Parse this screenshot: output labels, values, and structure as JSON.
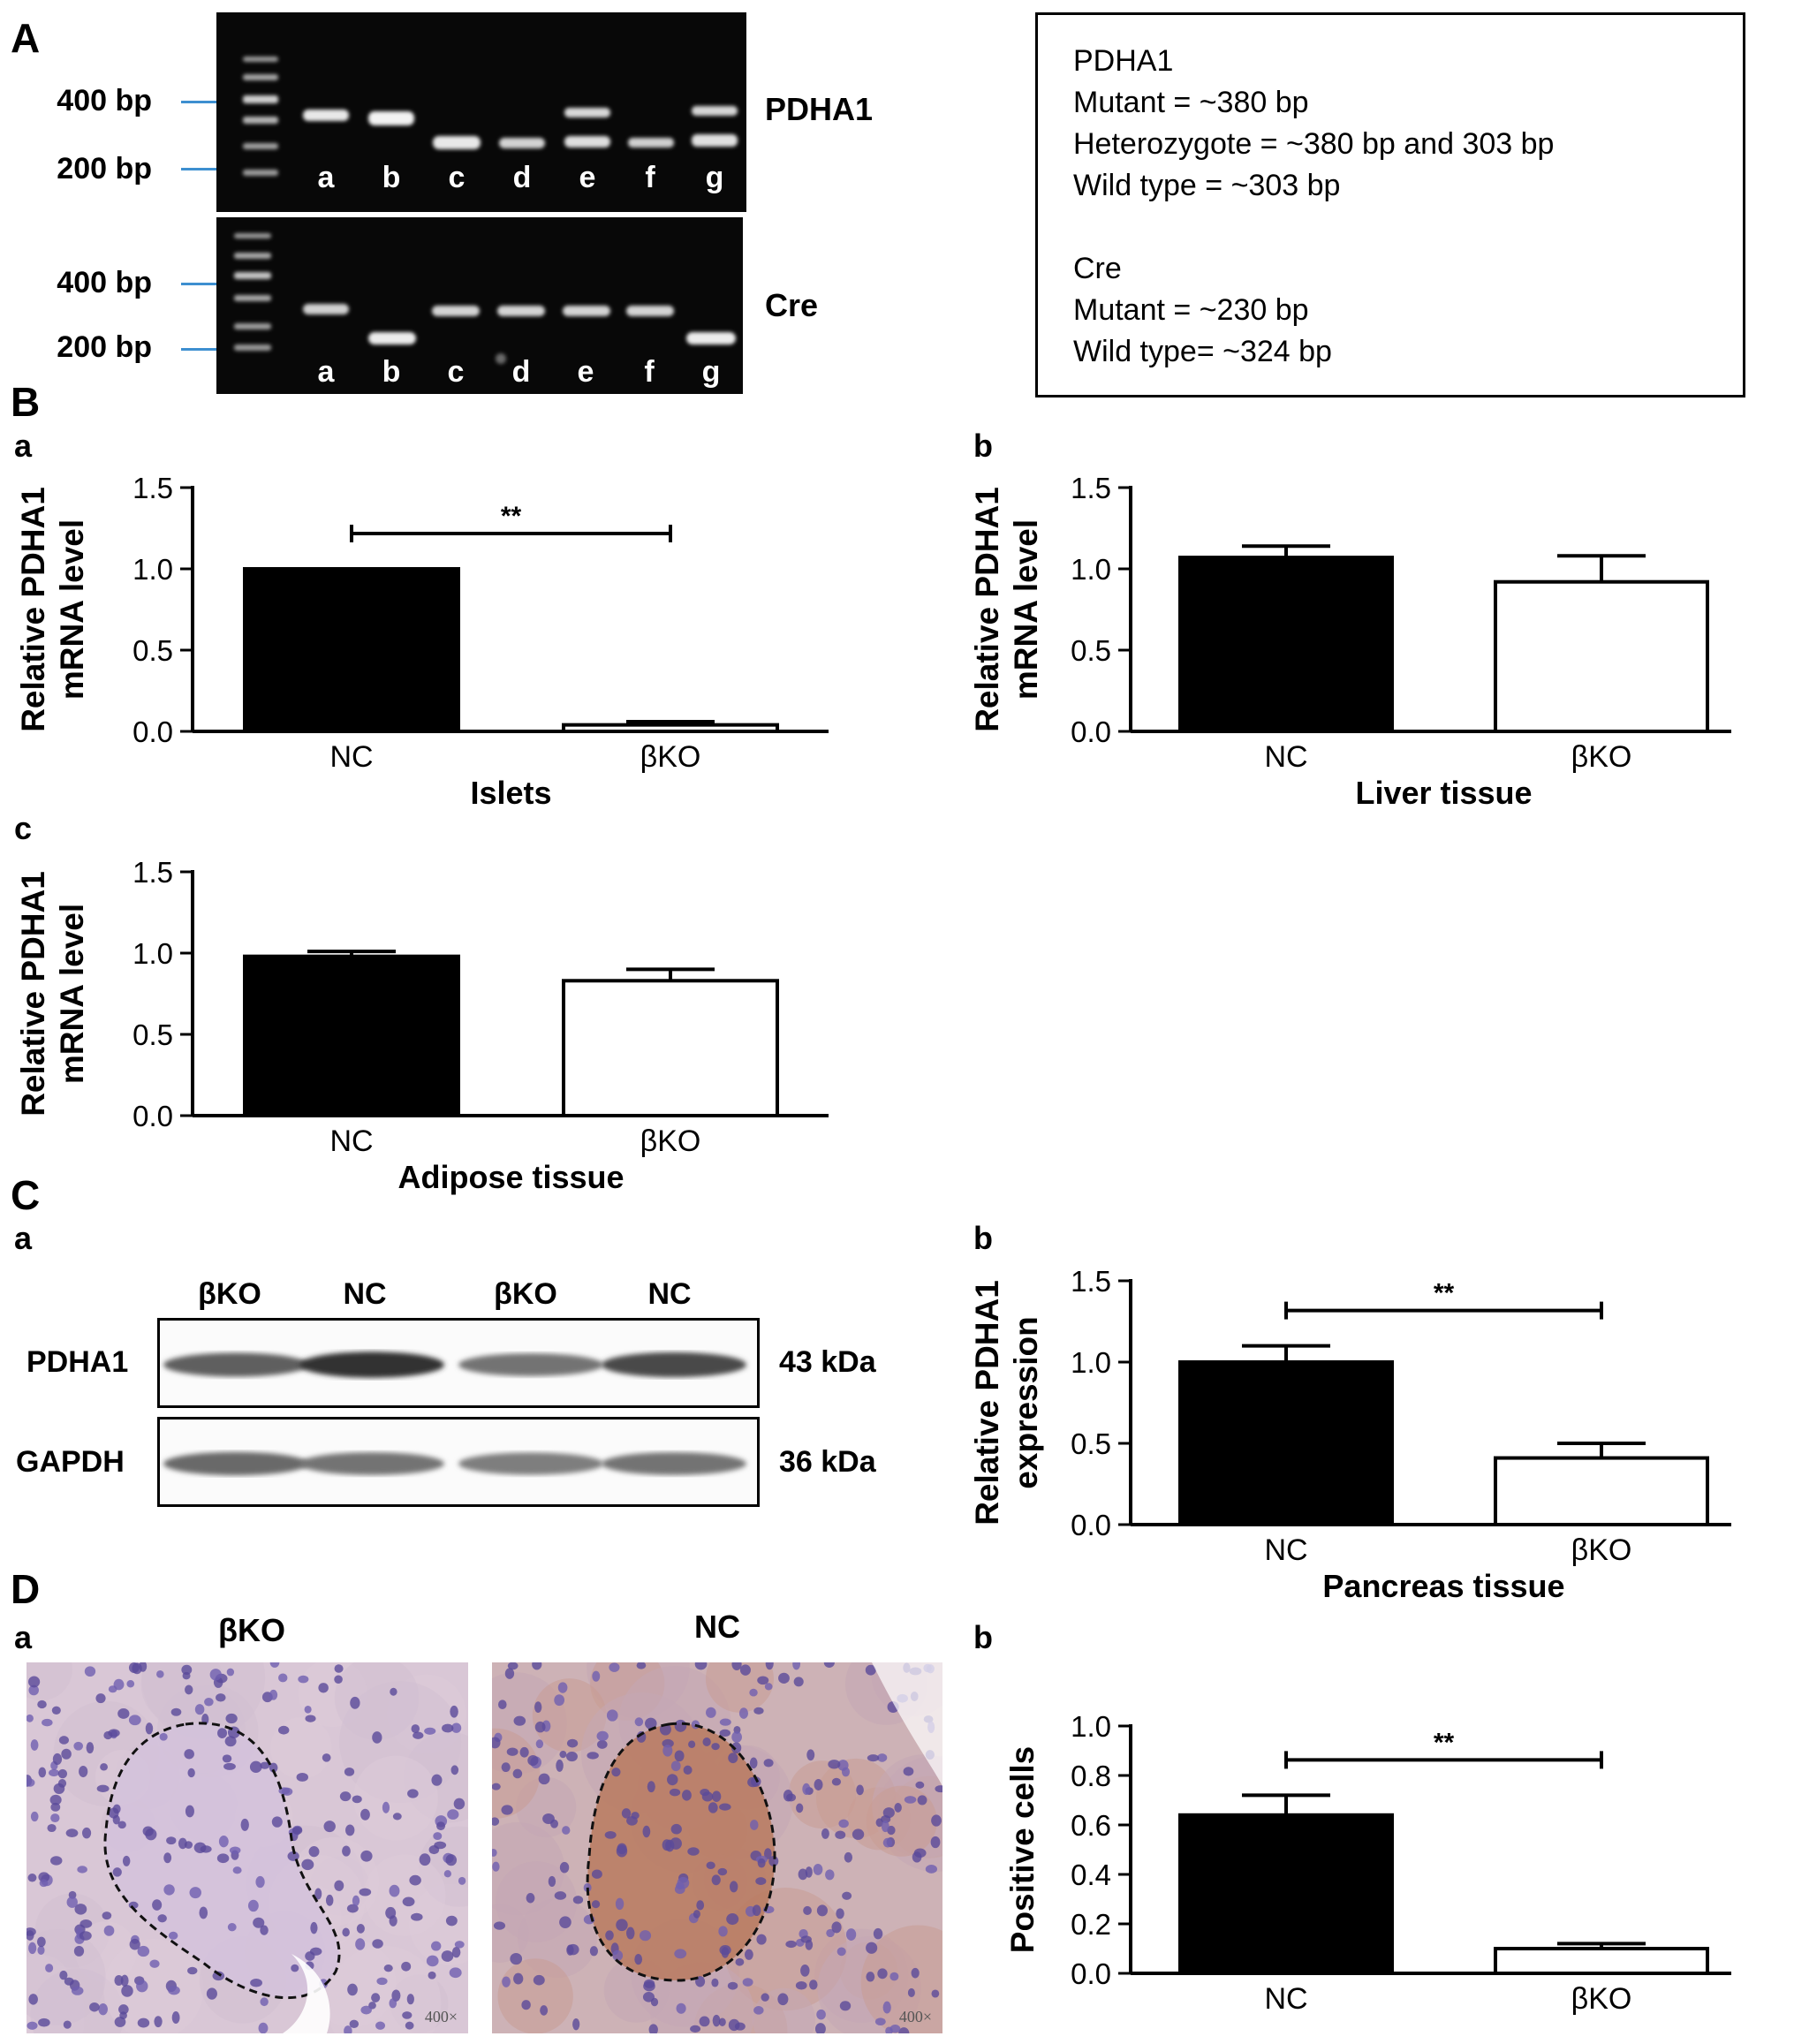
{
  "panel_labels": {
    "A": "A",
    "B": "B",
    "C": "C",
    "D": "D"
  },
  "sub_labels": {
    "Ba": "a",
    "Bb": "b",
    "Bc": "c",
    "Ca": "a",
    "Cb": "b",
    "Da": "a",
    "Db": "b"
  },
  "gel": {
    "pdha1": {
      "title": "PDHA1",
      "markers": [
        "400 bp",
        "200 bp"
      ],
      "lanes": [
        "a",
        "b",
        "c",
        "d",
        "e",
        "f",
        "g"
      ]
    },
    "cre": {
      "title": "Cre",
      "markers": [
        "400 bp",
        "200 bp"
      ],
      "lanes": [
        "a",
        "b",
        "c",
        "d",
        "e",
        "f",
        "g"
      ]
    }
  },
  "legend": {
    "lines": [
      "PDHA1",
      "Mutant = ~380 bp",
      "Heterozygote = ~380 bp and 303 bp",
      "Wild type = ~303 bp",
      "Cre",
      "Mutant = ~230 bp",
      "Wild type= ~324 bp"
    ]
  },
  "western": {
    "lanes": [
      "βKO",
      "NC",
      "βKO",
      "NC"
    ],
    "rows": [
      {
        "label": "PDHA1",
        "size": "43 kDa",
        "intensity": [
          0.75,
          0.95,
          0.65,
          0.85
        ]
      },
      {
        "label": "GAPDH",
        "size": "36 kDa",
        "intensity": [
          0.7,
          0.65,
          0.6,
          0.65
        ]
      }
    ]
  },
  "ihc": {
    "left": {
      "title": "βKO",
      "mag": "400×",
      "stain": "negative"
    },
    "right": {
      "title": "NC",
      "mag": "400×",
      "stain": "positive"
    }
  },
  "colors": {
    "nc_bar": "#000000",
    "bko_bar": "#ffffff",
    "marker_line": "#3d8fd0"
  },
  "chart_data": [
    {
      "id": "Ba",
      "type": "bar",
      "categories": [
        "NC",
        "βKO"
      ],
      "values": [
        1.0,
        0.04
      ],
      "errors": [
        0,
        0.02
      ],
      "ylabel": [
        "Relative PDHA1",
        "mRNA level"
      ],
      "xlabel": "Islets",
      "ylim": [
        0,
        1.5
      ],
      "yticks": [
        "0.0",
        "0.5",
        "1.0",
        "1.5"
      ],
      "significance": "**"
    },
    {
      "id": "Bb",
      "type": "bar",
      "categories": [
        "NC",
        "βKO"
      ],
      "values": [
        1.07,
        0.92
      ],
      "errors": [
        0.07,
        0.16
      ],
      "ylabel": [
        "Relative PDHA1",
        "mRNA level"
      ],
      "xlabel": "Liver tissue",
      "ylim": [
        0,
        1.5
      ],
      "yticks": [
        "0.0",
        "0.5",
        "1.0",
        "1.5"
      ],
      "significance": ""
    },
    {
      "id": "Bc",
      "type": "bar",
      "categories": [
        "NC",
        "βKO"
      ],
      "values": [
        0.98,
        0.83
      ],
      "errors": [
        0.03,
        0.07
      ],
      "ylabel": [
        "Relative PDHA1",
        "mRNA level"
      ],
      "xlabel": "Adipose tissue",
      "ylim": [
        0,
        1.5
      ],
      "yticks": [
        "0.0",
        "0.5",
        "1.0",
        "1.5"
      ],
      "significance": ""
    },
    {
      "id": "Cb",
      "type": "bar",
      "categories": [
        "NC",
        "βKO"
      ],
      "values": [
        1.0,
        0.41
      ],
      "errors": [
        0.1,
        0.09
      ],
      "ylabel": [
        "Relative PDHA1",
        "expression"
      ],
      "xlabel": "Pancreas tissue",
      "ylim": [
        0,
        1.5
      ],
      "yticks": [
        "0.0",
        "0.5",
        "1.0",
        "1.5"
      ],
      "significance": "**"
    },
    {
      "id": "Db",
      "type": "bar",
      "categories": [
        "NC",
        "βKO"
      ],
      "values": [
        0.64,
        0.1
      ],
      "errors": [
        0.08,
        0.02
      ],
      "ylabel": [
        "Positive cells"
      ],
      "xlabel": "",
      "ylim": [
        0,
        1.0
      ],
      "yticks": [
        "0.0",
        "0.2",
        "0.4",
        "0.6",
        "0.8",
        "1.0"
      ],
      "significance": "**"
    }
  ]
}
